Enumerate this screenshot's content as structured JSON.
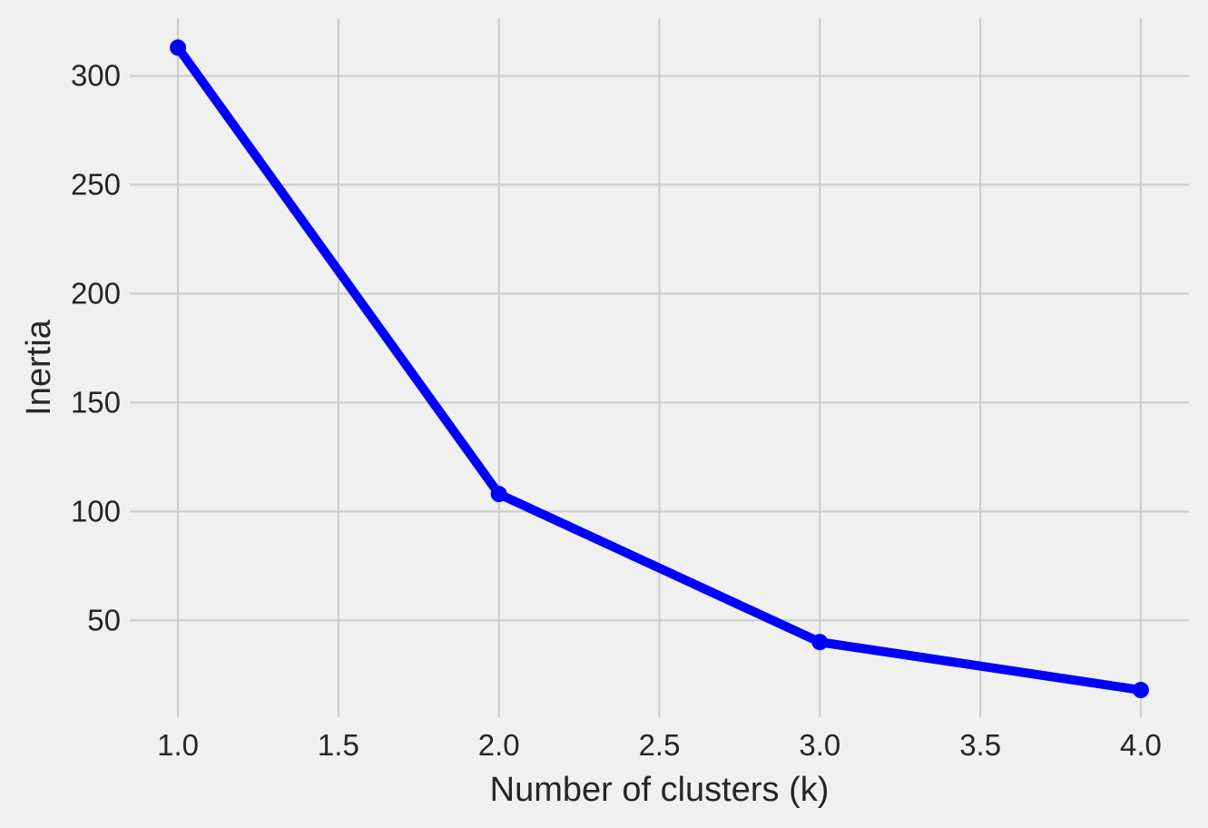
{
  "chart_data": {
    "type": "line",
    "title": "",
    "xlabel": "Number of clusters (k)",
    "ylabel": "Inertia",
    "x": [
      1,
      2,
      3,
      4
    ],
    "series": [
      {
        "values": [
          313,
          108,
          40,
          18
        ],
        "color": "#0000ff",
        "marker": "circle"
      }
    ],
    "xlim": [
      0.85,
      4.15
    ],
    "ylim": [
      5.5,
      326.5
    ],
    "xticks": [
      1.0,
      1.5,
      2.0,
      2.5,
      3.0,
      3.5,
      4.0
    ],
    "xtick_labels": [
      "1.0",
      "1.5",
      "2.0",
      "2.5",
      "3.0",
      "3.5",
      "4.0"
    ],
    "yticks": [
      50,
      100,
      150,
      200,
      250,
      300
    ],
    "ytick_labels": [
      "50",
      "100",
      "150",
      "200",
      "250",
      "300"
    ],
    "grid": true,
    "background": "#f0f0f0",
    "grid_color": "#cbcbcb"
  }
}
